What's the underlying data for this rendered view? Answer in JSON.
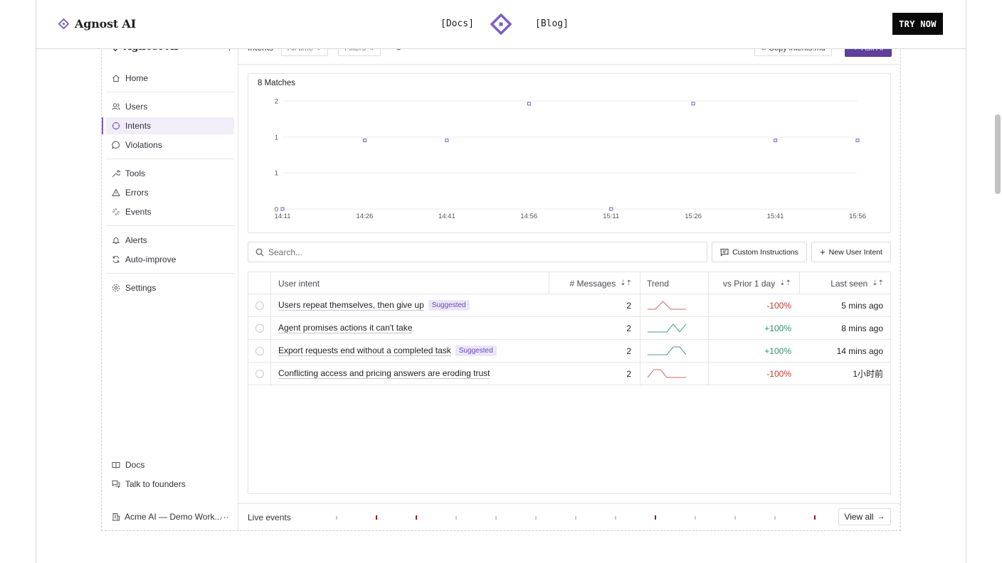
{
  "site": {
    "brand": "Agnost AI",
    "nav": [
      "[Docs]",
      "[Blog]"
    ],
    "cta": "TRY NOW"
  },
  "sidebar": {
    "brand": "Agnost AI",
    "collapse_label": "<|",
    "groups": [
      [
        {
          "label": "Home",
          "icon": "home-icon"
        }
      ],
      [
        {
          "label": "Users",
          "icon": "users-icon"
        },
        {
          "label": "Intents",
          "icon": "intents-icon",
          "active": true
        },
        {
          "label": "Violations",
          "icon": "chat-icon"
        }
      ],
      [
        {
          "label": "Tools",
          "icon": "wrench-icon"
        },
        {
          "label": "Errors",
          "icon": "warning-icon"
        },
        {
          "label": "Events",
          "icon": "sparkle-icon"
        }
      ],
      [
        {
          "label": "Alerts",
          "icon": "bell-icon"
        },
        {
          "label": "Auto-improve",
          "icon": "refresh-icon"
        }
      ],
      [
        {
          "label": "Settings",
          "icon": "gear-icon"
        }
      ]
    ],
    "footer_links": [
      {
        "label": "Docs",
        "icon": "book-icon"
      },
      {
        "label": "Talk to founders",
        "icon": "chat-icon"
      }
    ],
    "workspace": "Acme AI — Demo Work...",
    "workspace_more": "···"
  },
  "toolbar": {
    "title": "Intents",
    "time_filter": "All time",
    "filters": "Filters",
    "copy_button": "Copy intents.md",
    "ask_button": "Ask AI"
  },
  "chart_data": {
    "type": "scatter",
    "title": "8 Matches",
    "x": [
      "14:11",
      "14:26",
      "14:41",
      "14:56",
      "15:11",
      "15:26",
      "15:41",
      "15:56"
    ],
    "y": [
      0,
      1,
      1,
      2,
      0,
      2,
      1,
      1
    ],
    "y_ticks": [
      "0",
      "1",
      "1",
      "2"
    ],
    "ylim": [
      0,
      2
    ],
    "color": "#7b5fc5",
    "grid": true
  },
  "search": {
    "placeholder": "Search..."
  },
  "actions": {
    "custom_instructions": "Custom Instructions",
    "new_intent": "New User Intent"
  },
  "table": {
    "headers": {
      "intent": "User intent",
      "messages": "# Messages",
      "trend": "Trend",
      "vs_prior": "vs Prior 1 day",
      "last_seen": "Last seen"
    },
    "rows": [
      {
        "intent": "Users repeat themselves, then give up",
        "badge": "Suggested",
        "messages": "2",
        "trend": [
          0,
          0,
          1,
          0,
          0,
          0
        ],
        "trend_dir": "neg",
        "vs_prior": "-100%",
        "last_seen": "5 mins ago"
      },
      {
        "intent": "Agent promises actions it can't take",
        "badge": "",
        "messages": "2",
        "trend": [
          0,
          0,
          0,
          0,
          1,
          0,
          1
        ],
        "trend_dir": "pos",
        "vs_prior": "+100%",
        "last_seen": "8 mins ago"
      },
      {
        "intent": "Export requests end without a completed task",
        "badge": "Suggested",
        "messages": "2",
        "trend": [
          0,
          0,
          0,
          0,
          1,
          1,
          0
        ],
        "trend_dir": "pos",
        "vs_prior": "+100%",
        "last_seen": "14 mins ago"
      },
      {
        "intent": "Conflicting access and pricing answers are eroding trust",
        "badge": "",
        "messages": "2",
        "trend": [
          0,
          1,
          1,
          0,
          0,
          0,
          0
        ],
        "trend_dir": "neg",
        "vs_prior": "-100%",
        "last_seen": "1小时前"
      }
    ]
  },
  "live": {
    "label": "Live events",
    "events": [
      "ok",
      "err",
      "err",
      "ok",
      "ok",
      "ok",
      "ok",
      "ok",
      "err",
      "ok",
      "ok",
      "ok",
      "err"
    ],
    "view_all": "View all"
  },
  "colors": {
    "accent": "#7b5fc5",
    "negative": "#c0392b",
    "positive": "#2f8f6f"
  }
}
